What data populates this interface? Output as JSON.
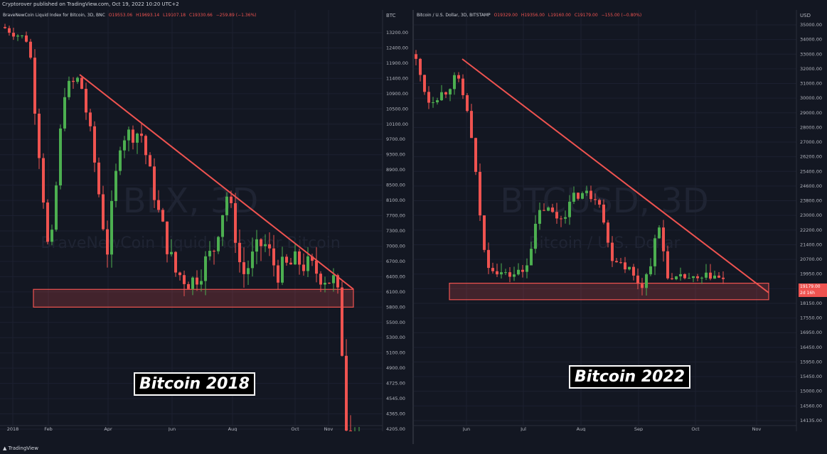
{
  "header": {
    "published": "Cryptorover published on TradingView.com, Oct 19, 2022 10:20 UTC+2"
  },
  "footer": {
    "brand": "TradingView"
  },
  "chart_data": [
    {
      "type": "candlestick",
      "legend": {
        "name": "BraveNewCoin Liquid Index for Bitcoin, 3D, BNC",
        "open": "O19553.06",
        "high": "H19693.14",
        "low": "L19107.18",
        "close": "C19330.66",
        "change": "−259.89 (−1.36%)"
      },
      "watermark": {
        "symbol": "BLX, 3D",
        "description": "BraveNewCoin Liquid Index for Bitcoin"
      },
      "currency": "BTC",
      "y_ticks": [
        "13200.00",
        "12400.00",
        "11900.00",
        "11400.00",
        "10900.00",
        "10500.00",
        "10100.00",
        "9700.00",
        "9300.00",
        "8900.00",
        "8500.00",
        "8100.00",
        "7700.00",
        "7300.00",
        "7000.00",
        "6700.00",
        "6400.00",
        "6100.00",
        "5800.00",
        "5500.00",
        "5300.00",
        "5100.00",
        "4900.00",
        "4725.00",
        "4545.00",
        "4365.00",
        "4205.00"
      ],
      "x_ticks": [
        "2018",
        "Feb",
        "Apr",
        "Jun",
        "Aug",
        "Oct",
        "Nov"
      ],
      "support_zone": [
        5800,
        6150
      ],
      "trendline": {
        "from": [
          "Feb",
          11500
        ],
        "to": [
          "Nov",
          6200
        ]
      },
      "annotation": "Bitcoin 2018",
      "up_color": "#4caf50",
      "down_color": "#ef5350"
    },
    {
      "type": "candlestick",
      "legend": {
        "name": "Bitcoin / U.S. Dollar, 3D, BITSTAMP",
        "open": "O19329.00",
        "high": "H19356.00",
        "low": "L19160.00",
        "close": "C19179.00",
        "change": "−155.00 (−0.80%)"
      },
      "watermark": {
        "symbol": "BTCUSD, 3D",
        "description": "Bitcoin / U.S. Dollar"
      },
      "currency": "USD",
      "y_ticks": [
        "35000.00",
        "34000.00",
        "33000.00",
        "32000.00",
        "31000.00",
        "30000.00",
        "29000.00",
        "28000.00",
        "27000.00",
        "26200.00",
        "25400.00",
        "24600.00",
        "23800.00",
        "23000.00",
        "22200.00",
        "21400.00",
        "20700.00",
        "19950.00",
        "18750.00",
        "18150.00",
        "17550.00",
        "16950.00",
        "16450.00",
        "15950.00",
        "15450.00",
        "15000.00",
        "14560.00",
        "14135.00"
      ],
      "x_ticks": [
        "Jun",
        "Jul",
        "Aug",
        "Sep",
        "Oct",
        "Nov"
      ],
      "support_zone": [
        18300,
        19200
      ],
      "trendline": {
        "from": [
          "Jun",
          31500
        ],
        "to": [
          "Nov",
          19200
        ]
      },
      "last_price": "19179.00",
      "countdown": "2d 16h",
      "annotation": "Bitcoin 2022",
      "up_color": "#4caf50",
      "down_color": "#ef5350"
    }
  ]
}
